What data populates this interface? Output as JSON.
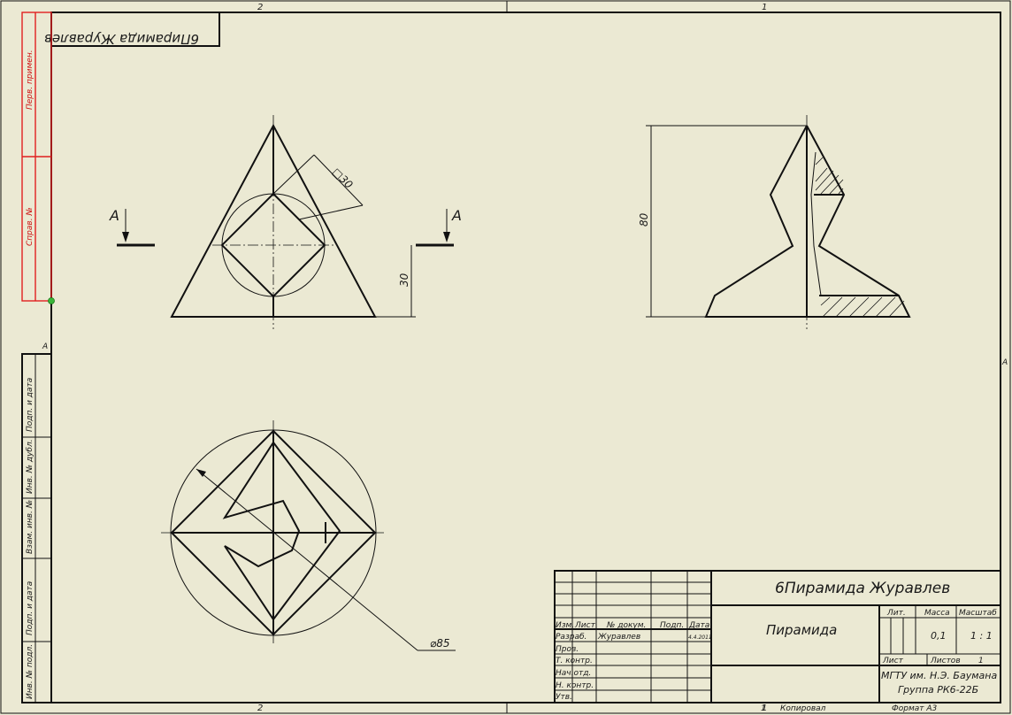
{
  "drawing": {
    "mirrored_title": "6Пирамида Журавлев",
    "zone_top": [
      "2",
      "1"
    ],
    "zone_bottom": [
      "2",
      "1"
    ],
    "zone_side": [
      "A",
      "A"
    ],
    "section_label": "A",
    "dimension_square": "□30",
    "dimension_30": "30",
    "dimension_80": "80",
    "dimension_diameter": "⌀85"
  },
  "left_strip": {
    "top_labels": [
      "Перв. примен.",
      "Справ. №"
    ],
    "bottom_labels": [
      "Подп. и дата",
      "Инв. № дубл.",
      "Взам. инв. №",
      "Подп. и дата",
      "Инв. № подл."
    ]
  },
  "title_block": {
    "designation": "6Пирамида Журавлев",
    "name": "Пирамида",
    "col_headers": [
      "Изм.",
      "Лист",
      "№ докум.",
      "Подп.",
      "Дата"
    ],
    "rows": [
      "Разраб.",
      "Пров.",
      "Т. контр.",
      "Нач.отд.",
      "Н. контр.",
      "Утв."
    ],
    "developer": "Журавлев",
    "date": "4.4.2011",
    "lit_label": "Лит.",
    "mass_label": "Масса",
    "scale_label": "Масштаб",
    "mass_value": "0,1",
    "scale_value": "1 : 1",
    "sheet_label": "Лист",
    "sheets_label": "Листов",
    "sheets_value": "1",
    "org_line1": "МГТУ им. Н.Э. Баумана",
    "org_line2": "Группа РК6-22Б"
  },
  "footer": {
    "copied_label": "Копировал",
    "copied_num": "1",
    "format_label": "Формат А3"
  }
}
